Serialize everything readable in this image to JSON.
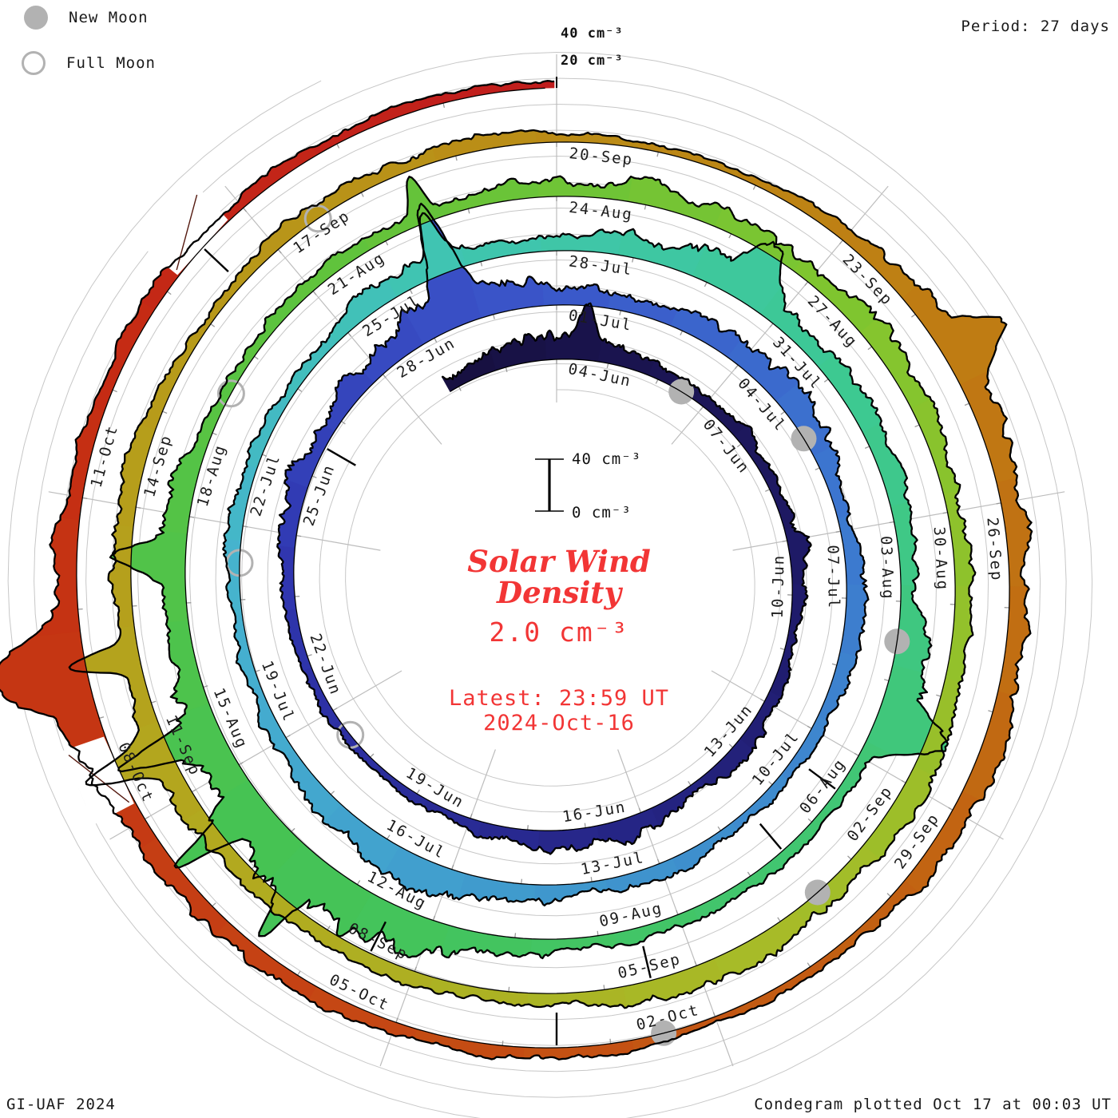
{
  "header": {
    "period_label": "Period: 27 days"
  },
  "legend": {
    "new_moon": "New Moon",
    "full_moon": "Full Moon"
  },
  "outer_radial_labels": {
    "l40": "40 cm⁻³",
    "l20": "20 cm⁻³"
  },
  "scale_bar": {
    "top_label": "40 cm⁻³",
    "bottom_label": "0 cm⁻³"
  },
  "center": {
    "title_line1": "Solar Wind",
    "title_line2": "Density",
    "value": "2.0 cm⁻³",
    "latest_line1": "Latest: 23:59 UT",
    "latest_line2": "2024-Oct-16"
  },
  "footer": {
    "left": "GI-UAF 2024",
    "right": "Condegram plotted Oct 17 at 00:03 UT"
  },
  "colors": {
    "text_red": "#f23535",
    "ink": "#000000",
    "grid_gray": "#c7c7c7",
    "spoke_gray": "#bdbdbd",
    "tick_gray": "#9a9a9a",
    "moon_gray": "#b2b2b2",
    "timeline_stops": [
      [
        -2,
        "#171040"
      ],
      [
        8,
        "#201c6e"
      ],
      [
        20,
        "#2f35ae"
      ],
      [
        26,
        "#3a52c8"
      ],
      [
        32,
        "#3c74cf"
      ],
      [
        40,
        "#3f96cd"
      ],
      [
        47,
        "#46b2cf"
      ],
      [
        52,
        "#40c4b4"
      ],
      [
        58,
        "#3dc993"
      ],
      [
        64,
        "#41c671"
      ],
      [
        71,
        "#45c354"
      ],
      [
        78,
        "#5ec33d"
      ],
      [
        85,
        "#83c52e"
      ],
      [
        92,
        "#a6bc28"
      ],
      [
        99,
        "#b3a71e"
      ],
      [
        106,
        "#b99318"
      ],
      [
        112,
        "#bf7d13"
      ],
      [
        118,
        "#c26112"
      ],
      [
        124,
        "#c54314"
      ],
      [
        130,
        "#c52c13"
      ],
      [
        135,
        "#c01d1d"
      ]
    ]
  },
  "chart_data": {
    "type": "spiral-condegram",
    "title": "Solar Wind Density",
    "period_days": 27,
    "degrees_per_day": 13.3333,
    "start_date": "2024-06-02",
    "end_date": "2024-10-16",
    "latest_time": "23:59 UT",
    "current_value_cm3": 2.0,
    "gridline_levels_cm3": [
      20,
      40
    ],
    "scale_bar_range_cm3": [
      0,
      40
    ],
    "date_labels": [
      "04-Jun",
      "07-Jun",
      "10-Jun",
      "13-Jun",
      "16-Jun",
      "19-Jun",
      "22-Jun",
      "25-Jun",
      "28-Jun",
      "01-Jul",
      "04-Jul",
      "07-Jul",
      "10-Jul",
      "13-Jul",
      "16-Jul",
      "19-Jul",
      "22-Jul",
      "25-Jul",
      "28-Jul",
      "31-Jul",
      "03-Aug",
      "06-Aug",
      "09-Aug",
      "12-Aug",
      "15-Aug",
      "18-Aug",
      "21-Aug",
      "24-Aug",
      "27-Aug",
      "30-Aug",
      "02-Sep",
      "05-Sep",
      "08-Sep",
      "11-Sep",
      "14-Sep",
      "17-Sep",
      "20-Sep",
      "23-Sep",
      "26-Sep",
      "29-Sep",
      "02-Oct",
      "05-Oct",
      "08-Oct",
      "11-Oct"
    ],
    "new_moons": [
      "2024-06-06",
      "2024-07-05",
      "2024-08-04",
      "2024-09-03",
      "2024-10-02"
    ],
    "full_moons": [
      "2024-06-21",
      "2024-07-21",
      "2024-08-19",
      "2024-09-17"
    ],
    "inward_tick_dates": [
      "2024-06-26",
      "2024-08-06",
      "2024-08-07",
      "2024-09-05",
      "2024-09-08",
      "2024-10-03",
      "2024-10-13"
    ],
    "data_gaps": [
      "2024-10-08",
      "2024-10-13"
    ],
    "daily_start_date": "2024-06-02",
    "daily_density_cm3": [
      10,
      14,
      16,
      12,
      8,
      7,
      9,
      6,
      12,
      8,
      6,
      9,
      12,
      8,
      14,
      16,
      12,
      8,
      6,
      5,
      7,
      6,
      8,
      12,
      16,
      10,
      18,
      26,
      20,
      14,
      10,
      12,
      18,
      16,
      12,
      10,
      14,
      10,
      7,
      6,
      8,
      10,
      8,
      12,
      16,
      18,
      14,
      10,
      8,
      7,
      12,
      8,
      7,
      12,
      16,
      12,
      10,
      16,
      20,
      14,
      12,
      14,
      10,
      14,
      22,
      10,
      8,
      7,
      9,
      8,
      12,
      25,
      34,
      33,
      30,
      22,
      16,
      20,
      10,
      8,
      9,
      8,
      10,
      12,
      14,
      12,
      14,
      16,
      12,
      10,
      12,
      10,
      14,
      12,
      14,
      16,
      10,
      7,
      9,
      8,
      12,
      18,
      16,
      12,
      14,
      8,
      7,
      9,
      12,
      10,
      6,
      5,
      6,
      10,
      16,
      18,
      14,
      12,
      14,
      12,
      10,
      6,
      5,
      9,
      10,
      8,
      10,
      14,
      12,
      22,
      18,
      10,
      8,
      10,
      7,
      8,
      6
    ],
    "spike_events": [
      {
        "date": "2024-06-04",
        "peak": 26,
        "width_days": 0.15
      },
      {
        "date": "2024-06-29",
        "peak": 72,
        "width_days": 0.2
      },
      {
        "date": "2024-07-26",
        "peak": 36,
        "width_days": 0.12
      },
      {
        "date": "2024-07-30",
        "peak": 34,
        "width_days": 0.3
      },
      {
        "date": "2024-08-05",
        "peak": 44,
        "width_days": 0.25
      },
      {
        "date": "2024-08-13",
        "peak": 58,
        "width_days": 0.1
      },
      {
        "date": "2024-08-14",
        "peak": 60,
        "width_days": 0.1
      },
      {
        "date": "2024-08-15",
        "peak": 55,
        "width_days": 0.12
      },
      {
        "date": "2024-08-17",
        "peak": 40,
        "width_days": 0.15
      },
      {
        "date": "2024-08-22",
        "peak": 30,
        "width_days": 0.1
      },
      {
        "date": "2024-09-11",
        "peak": 52,
        "width_days": 0.12
      },
      {
        "date": "2024-09-12",
        "peak": 44,
        "width_days": 0.1
      },
      {
        "date": "2024-09-24",
        "peak": 38,
        "width_days": 0.2
      },
      {
        "date": "2024-10-09",
        "peak": 50,
        "width_days": 0.3
      }
    ]
  }
}
